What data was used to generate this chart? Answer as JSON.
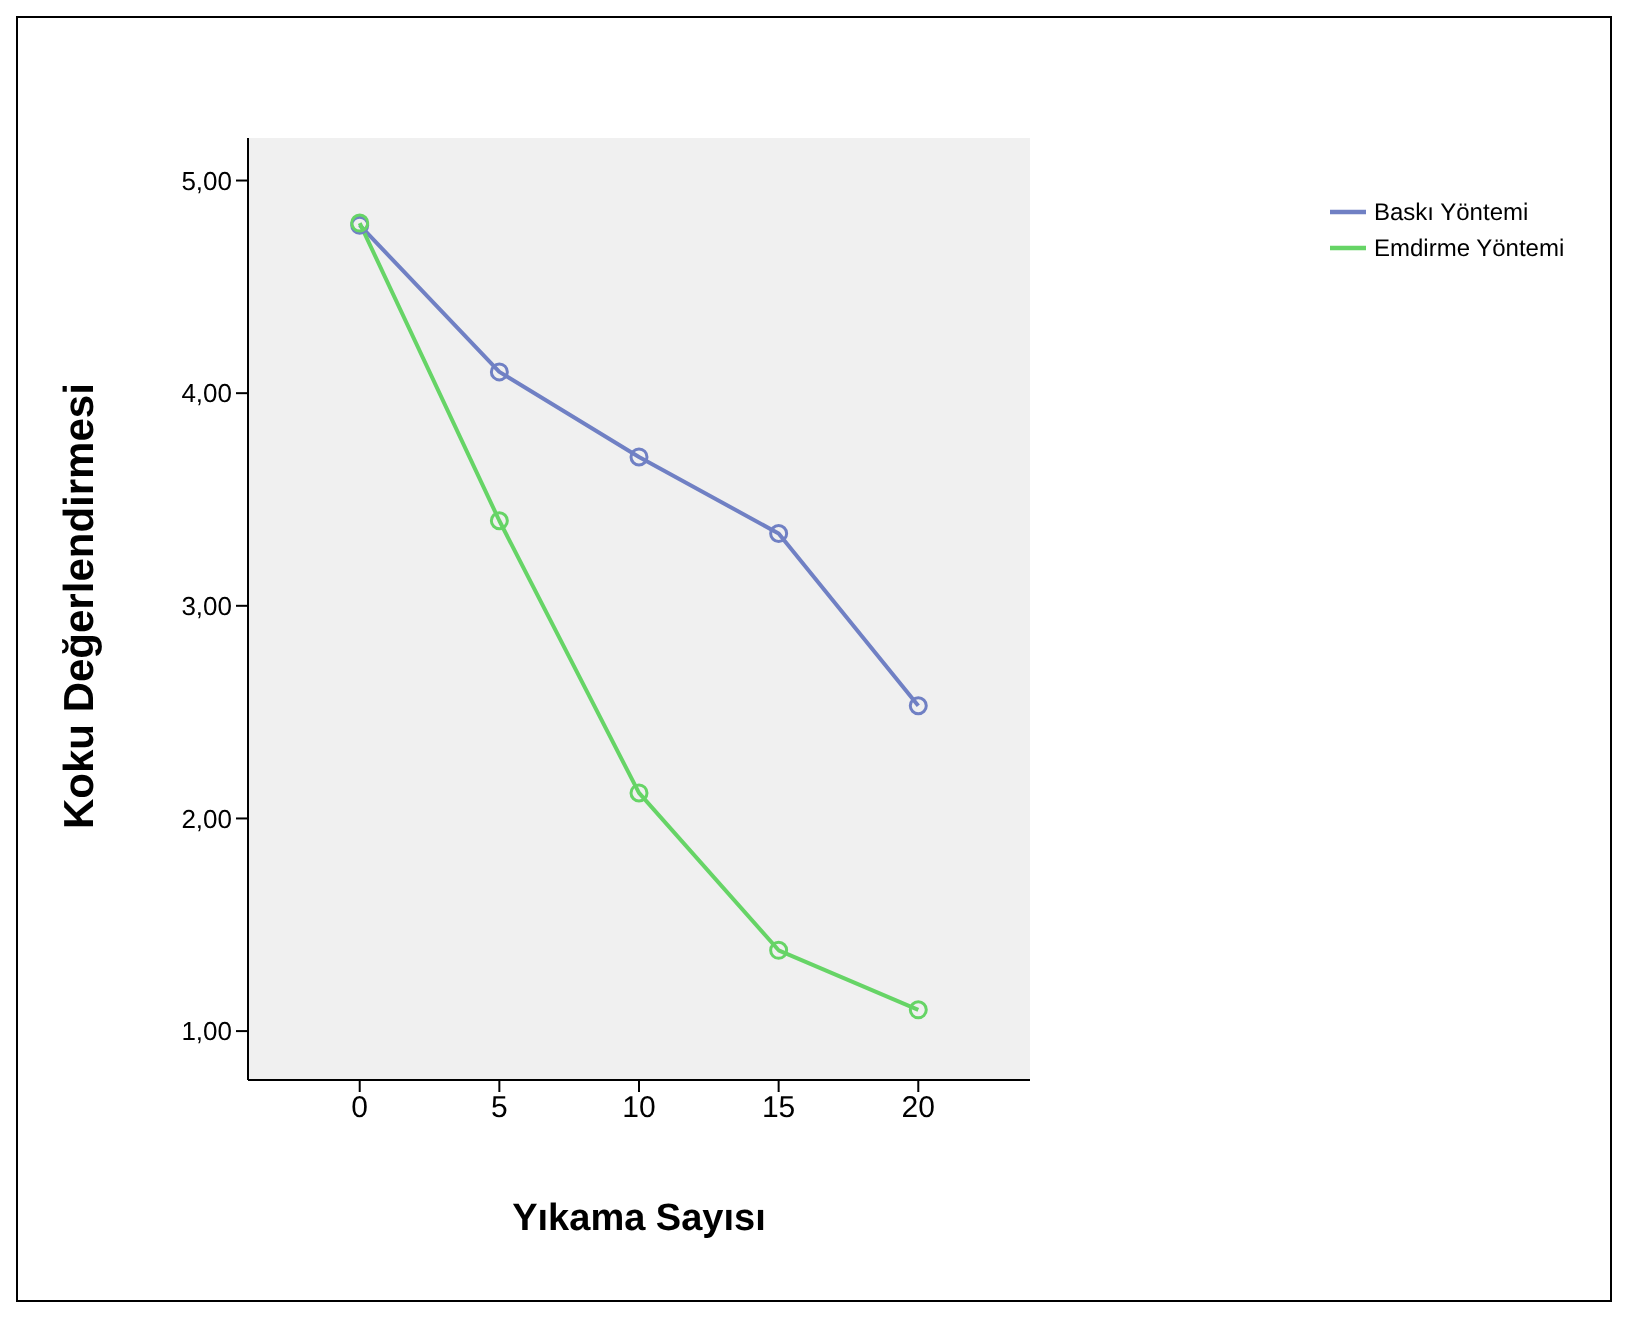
{
  "chart_data": {
    "type": "line",
    "xlabel": "Yıkama Sayısı",
    "ylabel": "Koku Değerlendirmesi",
    "x": [
      0,
      5,
      10,
      15,
      20
    ],
    "series": [
      {
        "name": "Baskı Yöntemi",
        "color": "#7080c4",
        "values": [
          4.79,
          4.1,
          3.7,
          3.34,
          2.53
        ]
      },
      {
        "name": "Emdirme Yöntemi",
        "color": "#66d466",
        "values": [
          4.8,
          3.4,
          2.12,
          1.38,
          1.1
        ]
      }
    ],
    "xlim": [
      -4,
      24
    ],
    "xticks": [
      0,
      5,
      10,
      15,
      20
    ],
    "ylim": [
      0.77,
      5.2
    ],
    "yticks": [
      {
        "value": 1,
        "label": "1,00"
      },
      {
        "value": 2,
        "label": "2,00"
      },
      {
        "value": 3,
        "label": "3,00"
      },
      {
        "value": 4,
        "label": "4,00"
      },
      {
        "value": 5,
        "label": "5,00"
      }
    ],
    "marker": "circle",
    "line_style": "solid",
    "legend": "top right"
  }
}
